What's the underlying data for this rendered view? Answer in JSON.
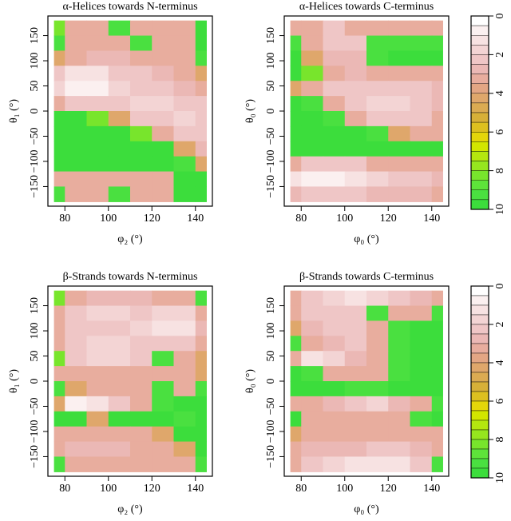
{
  "chart_data": [
    {
      "type": "contour",
      "title": "α-Helices towards N-terminus",
      "xlabel": "φ₂ (°)",
      "ylabel": "θ₁ (°)",
      "x": [
        75,
        85,
        95,
        105,
        115,
        125,
        135,
        145
      ],
      "y": [
        165,
        135,
        105,
        75,
        45,
        15,
        -15,
        -45,
        -75,
        -105,
        -135,
        -165
      ],
      "z": [
        [
          8,
          3,
          3,
          9,
          3,
          3,
          3,
          10
        ],
        [
          9,
          3,
          3,
          3,
          9,
          3,
          3,
          10
        ],
        [
          4,
          3,
          2.5,
          2.5,
          3,
          3,
          3,
          9
        ],
        [
          2,
          1,
          1,
          2,
          2,
          2.5,
          3,
          4
        ],
        [
          1.5,
          0.5,
          0.5,
          1.5,
          2,
          2,
          2.5,
          3
        ],
        [
          3,
          2,
          2,
          2,
          1.5,
          1.5,
          2,
          2
        ],
        [
          10,
          10,
          8,
          4,
          2,
          2,
          1.5,
          2
        ],
        [
          10,
          10,
          10,
          10,
          8,
          3,
          2,
          2
        ],
        [
          10,
          10,
          10,
          10,
          10,
          10,
          4,
          2.5
        ],
        [
          10,
          10,
          10,
          10,
          10,
          10,
          9,
          4
        ],
        [
          3,
          3,
          3,
          3,
          3,
          3,
          10,
          10
        ],
        [
          9,
          3,
          3,
          9,
          3,
          3,
          10,
          10
        ]
      ],
      "xlim": [
        72.2,
        147.8
      ],
      "ylim": [
        -189,
        189
      ],
      "xticks": [
        80,
        100,
        120,
        140
      ],
      "yticks": [
        {
          "value": -150,
          "label": "−150"
        },
        {
          "value": -100,
          "label": "−100"
        },
        {
          "value": -50,
          "label": "−50"
        },
        0,
        50,
        100,
        150
      ]
    },
    {
      "type": "contour",
      "title": "α-Helices towards C-terminus",
      "xlabel": "φ₀ (°)",
      "ylabel": "θ₀ (°)",
      "x": [
        75,
        85,
        95,
        105,
        115,
        125,
        135,
        145
      ],
      "y": [
        165,
        135,
        105,
        75,
        45,
        15,
        -15,
        -45,
        -75,
        -105,
        -135,
        -165
      ],
      "z": [
        [
          3,
          3,
          2,
          3,
          3,
          3,
          3,
          3
        ],
        [
          9,
          3,
          2,
          2,
          9,
          9,
          9,
          9
        ],
        [
          10,
          4,
          2.5,
          2.5,
          9,
          10,
          10,
          10
        ],
        [
          10,
          8,
          3,
          2.5,
          3,
          3,
          3,
          3
        ],
        [
          4,
          3,
          2,
          2,
          2,
          2,
          2,
          2.5
        ],
        [
          10,
          9,
          3,
          2,
          1.5,
          1.5,
          2,
          2.5
        ],
        [
          10,
          10,
          9,
          3,
          2,
          2,
          2,
          3
        ],
        [
          10,
          10,
          10,
          10,
          9,
          4,
          3,
          3
        ],
        [
          10,
          10,
          10,
          10,
          10,
          10,
          10,
          10
        ],
        [
          3,
          2,
          2,
          2,
          3,
          3,
          3,
          3
        ],
        [
          1,
          0.5,
          0.5,
          1,
          1.5,
          2,
          2,
          2.5
        ],
        [
          2.5,
          2,
          2,
          2,
          2.5,
          2.5,
          2.5,
          3
        ]
      ],
      "xlim": [
        72.2,
        147.8
      ],
      "ylim": [
        -189,
        189
      ],
      "xticks": [
        80,
        100,
        120,
        140
      ],
      "yticks": [
        {
          "value": -150,
          "label": "−150"
        },
        {
          "value": -100,
          "label": "−100"
        },
        {
          "value": -50,
          "label": "−50"
        },
        0,
        50,
        100,
        150
      ]
    },
    {
      "type": "contour",
      "title": "β-Strands towards N-terminus",
      "xlabel": "φ₂ (°)",
      "ylabel": "θ₁ (°)",
      "x": [
        75,
        85,
        95,
        105,
        115,
        125,
        135,
        145
      ],
      "y": [
        165,
        135,
        105,
        75,
        45,
        15,
        -15,
        -45,
        -75,
        -105,
        -135,
        -165
      ],
      "z": [
        [
          8,
          3,
          2.5,
          2.5,
          2.5,
          3,
          3,
          9
        ],
        [
          3,
          2,
          1.5,
          1.5,
          2,
          1.5,
          1.5,
          3
        ],
        [
          3,
          2,
          2,
          2,
          1.5,
          1,
          1,
          2.5
        ],
        [
          3,
          2,
          1.5,
          1.5,
          2,
          2,
          2,
          3
        ],
        [
          8,
          2,
          1.5,
          1.5,
          2,
          9,
          3,
          4
        ],
        [
          3,
          3,
          3,
          3,
          3,
          3,
          3,
          4
        ],
        [
          9,
          4,
          3,
          3,
          3,
          9,
          3,
          9
        ],
        [
          4,
          0.5,
          1,
          2,
          3,
          9,
          10,
          10
        ],
        [
          10,
          10,
          4,
          10,
          10,
          10,
          9,
          10
        ],
        [
          3,
          3,
          3,
          3,
          3,
          4,
          10,
          10
        ],
        [
          3,
          2.5,
          2.5,
          2.5,
          3,
          3,
          4,
          10
        ],
        [
          9,
          3,
          3,
          3,
          3,
          3,
          3,
          9
        ]
      ],
      "xlim": [
        72.2,
        147.8
      ],
      "ylim": [
        -189,
        189
      ],
      "xticks": [
        80,
        100,
        120,
        140
      ],
      "yticks": [
        {
          "value": -150,
          "label": "−150"
        },
        {
          "value": -100,
          "label": "−100"
        },
        {
          "value": -50,
          "label": "−50"
        },
        0,
        50,
        100,
        150
      ]
    },
    {
      "type": "contour",
      "title": "β-Strands towards C-terminus",
      "xlabel": "φ₀ (°)",
      "ylabel": "θ₀ (°)",
      "x": [
        75,
        85,
        95,
        105,
        115,
        125,
        135,
        145
      ],
      "y": [
        165,
        135,
        105,
        75,
        45,
        15,
        -15,
        -45,
        -75,
        -105,
        -135,
        -165
      ],
      "z": [
        [
          3,
          2,
          1.5,
          1,
          1.5,
          2,
          2.5,
          3
        ],
        [
          3,
          2,
          2,
          2,
          9,
          3,
          3,
          9
        ],
        [
          4,
          2.5,
          2,
          2,
          3,
          9,
          10,
          10
        ],
        [
          9,
          3,
          2.5,
          2,
          3,
          9,
          10,
          10
        ],
        [
          3,
          1,
          1.5,
          2.5,
          3,
          9,
          10,
          10
        ],
        [
          10,
          9,
          3,
          3,
          3,
          9,
          10,
          10
        ],
        [
          10,
          10,
          10,
          9,
          9,
          10,
          10,
          10
        ],
        [
          3,
          3,
          2.5,
          2,
          1.5,
          2.5,
          3,
          9
        ],
        [
          10,
          3,
          3,
          3,
          3,
          3,
          9,
          10
        ],
        [
          4,
          3,
          3,
          3,
          3,
          3,
          3,
          3
        ],
        [
          3,
          2.5,
          2.5,
          2.5,
          2,
          2,
          2.5,
          3
        ],
        [
          3,
          2,
          1.5,
          1,
          1,
          1,
          2,
          9
        ]
      ],
      "xlim": [
        72.2,
        147.8
      ],
      "ylim": [
        -189,
        189
      ],
      "xticks": [
        80,
        100,
        120,
        140
      ],
      "yticks": [
        {
          "value": -150,
          "label": "−150"
        },
        {
          "value": -100,
          "label": "−100"
        },
        {
          "value": -50,
          "label": "−50"
        },
        0,
        50,
        100,
        150
      ]
    },
    {
      "type": "colorbar",
      "levels": [
        0,
        0.5,
        1,
        1.5,
        2,
        2.5,
        3,
        3.5,
        4,
        4.5,
        5,
        5.5,
        6,
        6.5,
        7,
        7.5,
        8,
        8.5,
        9,
        9.5,
        10
      ],
      "colors": [
        "#ffffff",
        "#fbf0f0",
        "#f7e2e2",
        "#f3d4d4",
        "#efc6c6",
        "#ebb8b5",
        "#e8ad9e",
        "#e3a684",
        "#dfa76b",
        "#dbab52",
        "#d7b038",
        "#ddc020",
        "#e4d60a",
        "#d2e600",
        "#b4e60f",
        "#96e61e",
        "#78e52c",
        "#5ee33a",
        "#4ae040",
        "#3cdd3c"
      ],
      "ylim": [
        0,
        10
      ],
      "yticks": [
        0,
        2,
        4,
        6,
        8,
        10
      ]
    },
    {
      "type": "colorbar",
      "levels": [
        0,
        0.5,
        1,
        1.5,
        2,
        2.5,
        3,
        3.5,
        4,
        4.5,
        5,
        5.5,
        6,
        6.5,
        7,
        7.5,
        8,
        8.5,
        9,
        9.5,
        10
      ],
      "colors": [
        "#ffffff",
        "#fbf0f0",
        "#f7e2e2",
        "#f3d4d4",
        "#efc6c6",
        "#ebb8b5",
        "#e8ad9e",
        "#e3a684",
        "#dfa76b",
        "#dbab52",
        "#d7b038",
        "#ddc020",
        "#e4d60a",
        "#d2e600",
        "#b4e60f",
        "#96e61e",
        "#78e52c",
        "#5ee33a",
        "#4ae040",
        "#3cdd3c"
      ],
      "ylim": [
        0,
        10
      ],
      "yticks": [
        0,
        2,
        4,
        6,
        8,
        10
      ]
    }
  ]
}
